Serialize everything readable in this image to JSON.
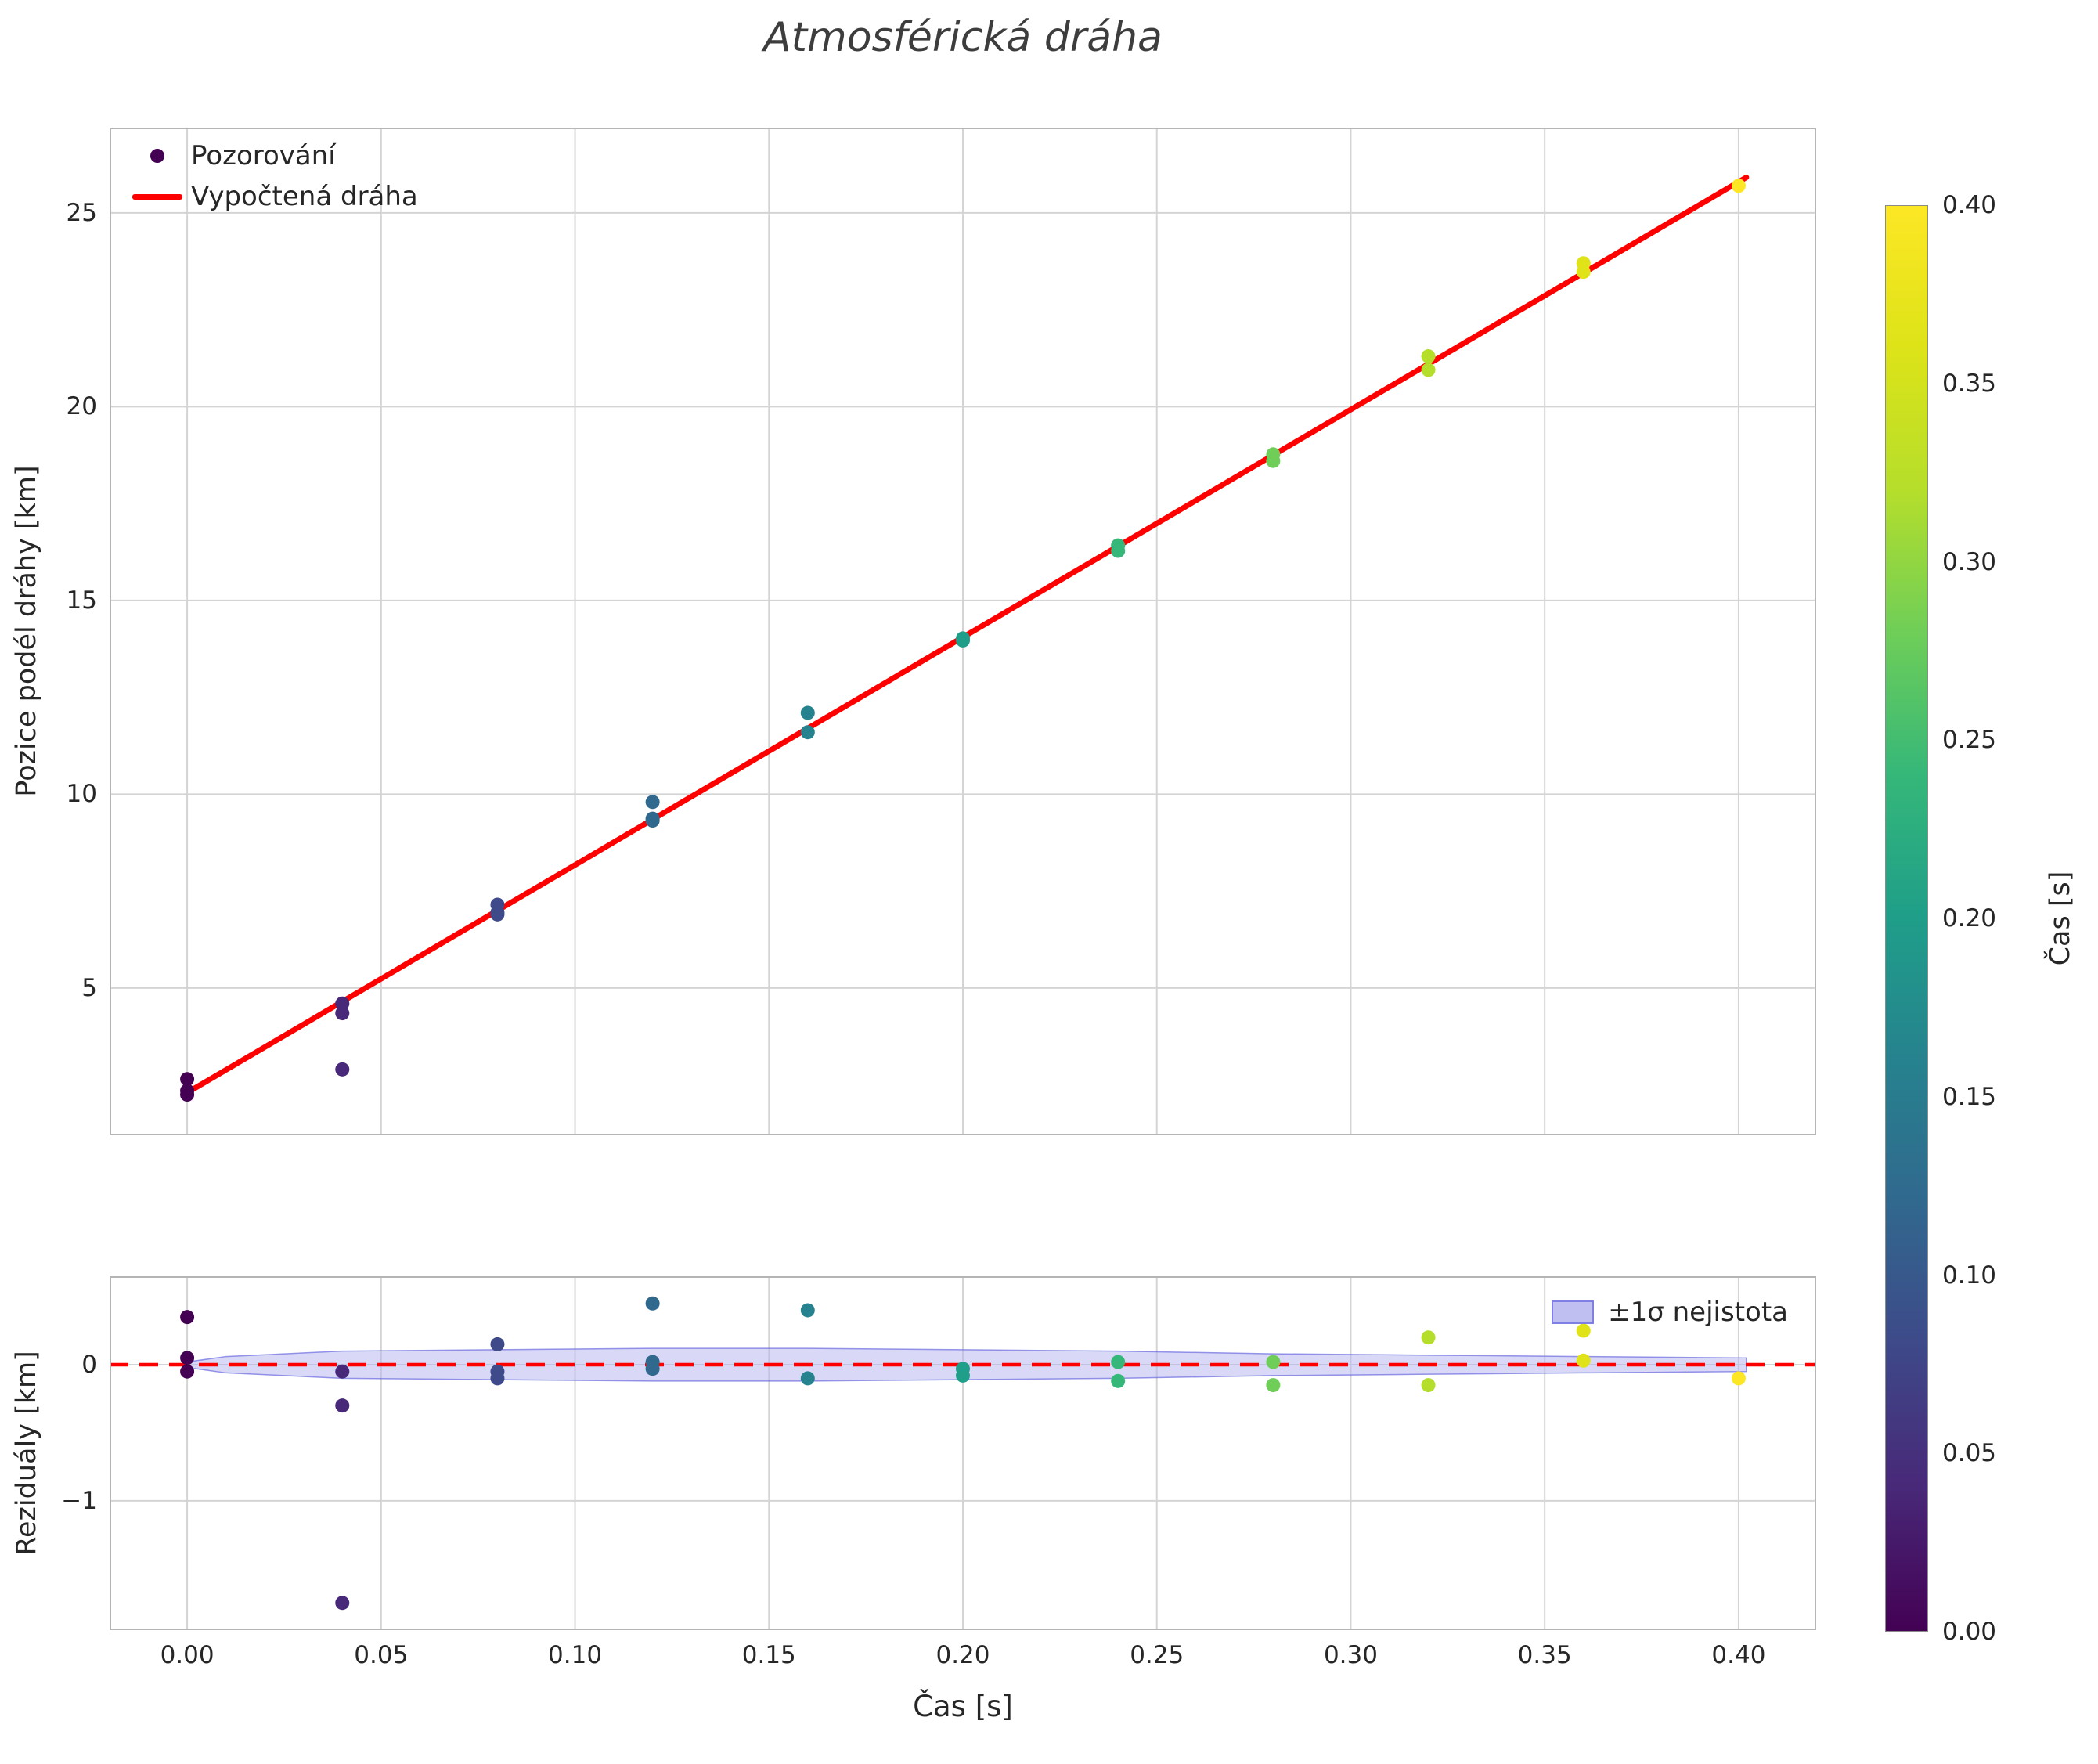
{
  "title": "Atmosférická dráha",
  "chart_data": {
    "type": "scatter",
    "title": "Atmosférická dráha",
    "xlabel": "Čas [s]",
    "xlim": [
      -0.02,
      0.42
    ],
    "xtick_values": [
      0.0,
      0.05,
      0.1,
      0.15,
      0.2,
      0.25,
      0.3,
      0.35,
      0.4
    ],
    "xtick_labels": [
      "0.00",
      "0.05",
      "0.10",
      "0.15",
      "0.20",
      "0.25",
      "0.30",
      "0.35",
      "0.40"
    ],
    "grid": true,
    "top_panel": {
      "ylabel": "Pozice podél dráhy [km]",
      "ylim": [
        1.2,
        27.2
      ],
      "ytick_values": [
        5,
        10,
        15,
        20,
        25
      ],
      "ytick_labels": [
        "5",
        "10",
        "15",
        "20",
        "25"
      ],
      "legend": [
        {
          "label": "Pozorování",
          "marker": "dot",
          "color": "#440154"
        },
        {
          "label": "Vypočtená dráha",
          "marker": "line",
          "color": "#ff0000"
        }
      ],
      "fit_line": {
        "intercept_km": 2.3,
        "slope_km_per_s": 58.75,
        "t_start": 0.0,
        "t_end": 0.402,
        "color": "#ff0000"
      }
    },
    "bottom_panel": {
      "ylabel": "Reziduály [km]",
      "ylim": [
        -1.95,
        0.65
      ],
      "ytick_values": [
        0,
        -1
      ],
      "ytick_labels": [
        "0",
        "−1"
      ],
      "zero_line": {
        "y": 0,
        "style": "dashed",
        "color": "#ff0000"
      },
      "legend": [
        {
          "label": "±1σ nejistota",
          "fill": "#b4b4f0",
          "edge": "#6a6ae0"
        }
      ],
      "band": {
        "x": [
          0.0,
          0.01,
          0.04,
          0.08,
          0.12,
          0.16,
          0.2,
          0.24,
          0.28,
          0.32,
          0.36,
          0.402
        ],
        "upper": [
          0.02,
          0.06,
          0.1,
          0.11,
          0.12,
          0.12,
          0.11,
          0.1,
          0.08,
          0.07,
          0.06,
          0.05
        ],
        "lower": [
          -0.02,
          -0.06,
          -0.1,
          -0.11,
          -0.12,
          -0.12,
          -0.11,
          -0.1,
          -0.08,
          -0.07,
          -0.06,
          -0.05
        ],
        "fill": "#b4b4f0",
        "edge": "#6a6ae0"
      }
    },
    "colorbar": {
      "label": "Čas [s]",
      "vmin": 0.0,
      "vmax": 0.4,
      "tick_values": [
        0.0,
        0.05,
        0.1,
        0.15,
        0.2,
        0.25,
        0.3,
        0.35,
        0.4
      ],
      "tick_labels": [
        "0.00",
        "0.05",
        "0.10",
        "0.15",
        "0.20",
        "0.25",
        "0.30",
        "0.35",
        "0.40"
      ],
      "cmap": "viridis"
    },
    "observations": [
      {
        "t": 0.0,
        "y": 2.65,
        "residual": 0.35
      },
      {
        "t": 0.0,
        "y": 2.35,
        "residual": 0.05
      },
      {
        "t": 0.0,
        "y": 2.25,
        "residual": -0.05
      },
      {
        "t": 0.04,
        "y": 4.6,
        "residual": -0.05
      },
      {
        "t": 0.04,
        "y": 4.35,
        "residual": -0.3
      },
      {
        "t": 0.04,
        "y": 2.9,
        "residual": -1.75
      },
      {
        "t": 0.08,
        "y": 7.15,
        "residual": 0.15
      },
      {
        "t": 0.08,
        "y": 6.95,
        "residual": -0.05
      },
      {
        "t": 0.08,
        "y": 6.9,
        "residual": -0.1
      },
      {
        "t": 0.12,
        "y": 9.8,
        "residual": 0.45
      },
      {
        "t": 0.12,
        "y": 9.37,
        "residual": 0.02
      },
      {
        "t": 0.12,
        "y": 9.32,
        "residual": -0.03
      },
      {
        "t": 0.16,
        "y": 12.1,
        "residual": 0.4
      },
      {
        "t": 0.16,
        "y": 11.6,
        "residual": -0.1
      },
      {
        "t": 0.2,
        "y": 14.02,
        "residual": -0.03
      },
      {
        "t": 0.2,
        "y": 13.97,
        "residual": -0.08
      },
      {
        "t": 0.24,
        "y": 16.42,
        "residual": 0.02
      },
      {
        "t": 0.24,
        "y": 16.28,
        "residual": -0.12
      },
      {
        "t": 0.28,
        "y": 18.77,
        "residual": 0.02
      },
      {
        "t": 0.28,
        "y": 18.6,
        "residual": -0.15
      },
      {
        "t": 0.32,
        "y": 21.3,
        "residual": 0.2
      },
      {
        "t": 0.32,
        "y": 20.95,
        "residual": -0.15
      },
      {
        "t": 0.36,
        "y": 23.7,
        "residual": 0.25
      },
      {
        "t": 0.36,
        "y": 23.48,
        "residual": 0.03
      },
      {
        "t": 0.4,
        "y": 25.7,
        "residual": -0.1
      }
    ],
    "style": {
      "grid_color": "#d4d4d4",
      "spine_color": "#b5b5b5",
      "text_color": "#262626",
      "title_color": "#3d3d3d",
      "background": "#ffffff",
      "marker_radius_px": 9
    }
  }
}
